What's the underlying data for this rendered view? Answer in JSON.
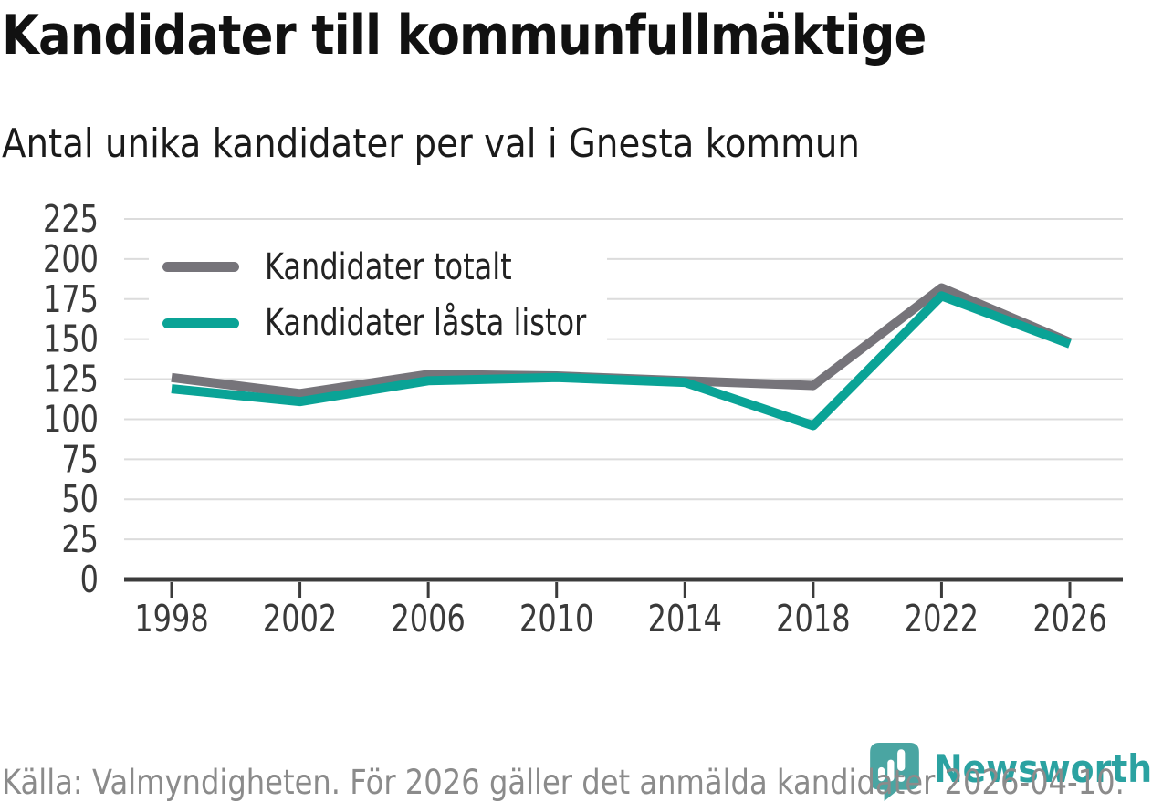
{
  "header": {
    "title": "Kandidater till kommunfullmäktige",
    "subtitle": "Antal unika kandidater per val i Gnesta kommun"
  },
  "legend": {
    "items": [
      {
        "label": "Kandidater totalt",
        "color": "#76747a"
      },
      {
        "label": "Kandidater låsta listor",
        "color": "#0aa396"
      }
    ]
  },
  "footer": {
    "source": "Källa: Valmyndigheten. För 2026 gäller det anmälda kandidater 2026-04-10.",
    "brand": "Newsworthy"
  },
  "icons": {
    "logo": "newsworthy-speech-bubble-bar-chart-icon"
  },
  "colors": {
    "series_total": "#76747a",
    "series_locked": "#0aa396",
    "gridline": "#dcdcdc",
    "axis": "#3b3b3b",
    "tick_label": "#3a3a3a",
    "footer_text": "#8b8b8b",
    "brand_teal": "#2ba2a1",
    "logo_fill": "#4aa5a2"
  },
  "chart_data": {
    "type": "line",
    "title": "Kandidater till kommunfullmäktige",
    "subtitle": "Antal unika kandidater per val i Gnesta kommun",
    "x": [
      1998,
      2002,
      2006,
      2010,
      2014,
      2018,
      2022,
      2026
    ],
    "series": [
      {
        "name": "Kandidater totalt",
        "color": "#76747a",
        "values": [
          126,
          116,
          128,
          127,
          124,
          121,
          182,
          148
        ]
      },
      {
        "name": "Kandidater låsta listor",
        "color": "#0aa396",
        "values": [
          119,
          111,
          124,
          126,
          123,
          96,
          177,
          147
        ]
      }
    ],
    "xlabel": "",
    "ylabel": "",
    "ylim": [
      0,
      225
    ],
    "yticks": [
      0,
      25,
      50,
      75,
      100,
      125,
      150,
      175,
      200,
      225
    ],
    "grid": true,
    "legend_position": "upper-left-inside",
    "source_note": "Källa: Valmyndigheten. För 2026 gäller det anmälda kandidater 2026-04-10."
  }
}
